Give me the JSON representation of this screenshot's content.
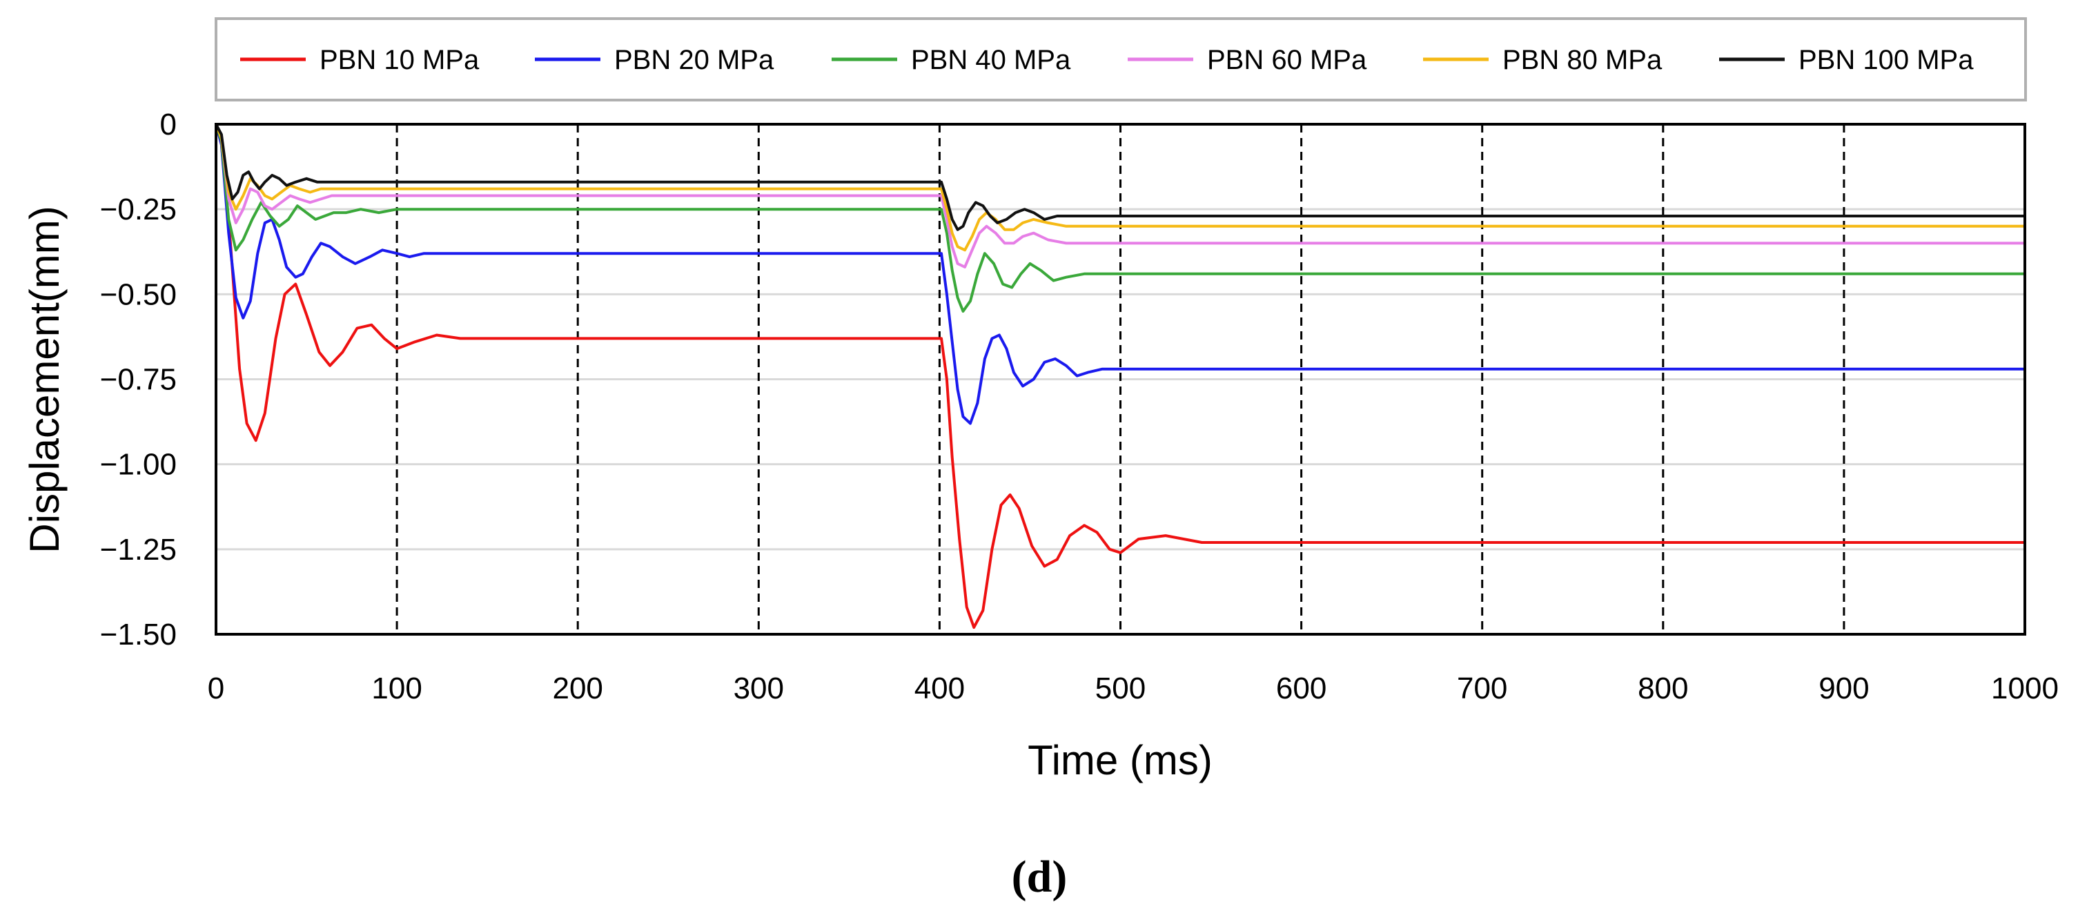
{
  "chart_data": {
    "type": "line",
    "title": "",
    "xlabel": "Time (ms)",
    "ylabel": "Displacement(mm)",
    "panel_label": "(d)",
    "xlim": [
      0,
      1000
    ],
    "ylim": [
      -1.5,
      0
    ],
    "x_ticks": [
      0,
      100,
      200,
      300,
      400,
      500,
      600,
      700,
      800,
      900,
      1000
    ],
    "x_tick_labels": [
      "0",
      "100",
      "200",
      "300",
      "400",
      "500",
      "600",
      "700",
      "800",
      "900",
      "1000"
    ],
    "y_ticks": [
      0,
      -0.25,
      -0.5,
      -0.75,
      -1.0,
      -1.25,
      -1.5
    ],
    "y_tick_labels": [
      "0",
      "-0.25",
      "-0.50",
      "-0.75",
      "-1.00",
      "-1.25",
      "-1.50"
    ],
    "horizontal_grid": true,
    "vertical_grid": "dashed",
    "legend_position": "top",
    "series": [
      {
        "name": "PBN 10 MPa",
        "color": "#ee1111",
        "x": [
          0,
          3,
          8,
          13,
          17,
          22,
          27,
          33,
          38,
          44,
          50,
          57,
          63,
          70,
          78,
          86,
          93,
          100,
          110,
          122,
          135,
          150,
          200,
          300,
          401,
          404,
          407,
          411,
          415,
          419,
          424,
          429,
          434,
          439,
          444,
          451,
          458,
          465,
          472,
          480,
          487,
          494,
          500,
          510,
          525,
          545,
          565,
          600,
          700,
          800,
          900,
          1000
        ],
        "y": [
          0,
          -0.06,
          -0.35,
          -0.72,
          -0.88,
          -0.93,
          -0.85,
          -0.63,
          -0.5,
          -0.47,
          -0.56,
          -0.67,
          -0.71,
          -0.67,
          -0.6,
          -0.59,
          -0.63,
          -0.66,
          -0.64,
          -0.62,
          -0.63,
          -0.63,
          -0.63,
          -0.63,
          -0.63,
          -0.75,
          -0.98,
          -1.22,
          -1.42,
          -1.48,
          -1.43,
          -1.25,
          -1.12,
          -1.09,
          -1.13,
          -1.24,
          -1.3,
          -1.28,
          -1.21,
          -1.18,
          -1.2,
          -1.25,
          -1.26,
          -1.22,
          -1.21,
          -1.23,
          -1.23,
          -1.23,
          -1.23,
          -1.23,
          -1.23,
          -1.23
        ]
      },
      {
        "name": "PBN 20 MPa",
        "color": "#1a1aee",
        "x": [
          0,
          3,
          7,
          11,
          15,
          19,
          23,
          27,
          31,
          35,
          39,
          44,
          48,
          53,
          58,
          63,
          70,
          77,
          85,
          92,
          100,
          107,
          115,
          122,
          130,
          200,
          300,
          401,
          404,
          407,
          410,
          413,
          417,
          421,
          425,
          429,
          433,
          437,
          441,
          446,
          452,
          458,
          464,
          470,
          476,
          482,
          490,
          500,
          550,
          600,
          700,
          800,
          900,
          1000
        ],
        "y": [
          0,
          -0.06,
          -0.32,
          -0.51,
          -0.57,
          -0.52,
          -0.38,
          -0.29,
          -0.28,
          -0.34,
          -0.42,
          -0.45,
          -0.44,
          -0.39,
          -0.35,
          -0.36,
          -0.39,
          -0.41,
          -0.39,
          -0.37,
          -0.38,
          -0.39,
          -0.38,
          -0.38,
          -0.38,
          -0.38,
          -0.38,
          -0.38,
          -0.5,
          -0.64,
          -0.78,
          -0.86,
          -0.88,
          -0.82,
          -0.69,
          -0.63,
          -0.62,
          -0.66,
          -0.73,
          -0.77,
          -0.75,
          -0.7,
          -0.69,
          -0.71,
          -0.74,
          -0.73,
          -0.72,
          -0.72,
          -0.72,
          -0.72,
          -0.72,
          -0.72,
          -0.72,
          -0.72
        ]
      },
      {
        "name": "PBN 40 MPa",
        "color": "#3aa83a",
        "x": [
          0,
          3,
          7,
          11,
          15,
          20,
          25,
          30,
          35,
          40,
          45,
          50,
          55,
          60,
          65,
          72,
          80,
          90,
          100,
          200,
          300,
          401,
          404,
          407,
          410,
          413,
          417,
          421,
          425,
          430,
          435,
          440,
          445,
          450,
          456,
          463,
          470,
          480,
          500,
          600,
          700,
          800,
          900,
          1000
        ],
        "y": [
          0,
          -0.05,
          -0.28,
          -0.37,
          -0.34,
          -0.28,
          -0.23,
          -0.27,
          -0.3,
          -0.28,
          -0.24,
          -0.26,
          -0.28,
          -0.27,
          -0.26,
          -0.26,
          -0.25,
          -0.26,
          -0.25,
          -0.25,
          -0.25,
          -0.25,
          -0.32,
          -0.43,
          -0.51,
          -0.55,
          -0.52,
          -0.44,
          -0.38,
          -0.41,
          -0.47,
          -0.48,
          -0.44,
          -0.41,
          -0.43,
          -0.46,
          -0.45,
          -0.44,
          -0.44,
          -0.44,
          -0.44,
          -0.44,
          -0.44,
          -0.44
        ]
      },
      {
        "name": "PBN 60 MPa",
        "color": "#e67ee6",
        "x": [
          0,
          3,
          7,
          11,
          15,
          19,
          23,
          27,
          31,
          36,
          41,
          46,
          52,
          58,
          64,
          72,
          80,
          90,
          100,
          200,
          300,
          401,
          404,
          407,
          410,
          414,
          418,
          422,
          426,
          431,
          436,
          441,
          446,
          452,
          460,
          470,
          485,
          500,
          600,
          700,
          800,
          900,
          1000
        ],
        "y": [
          0,
          -0.04,
          -0.22,
          -0.29,
          -0.25,
          -0.19,
          -0.2,
          -0.24,
          -0.25,
          -0.23,
          -0.21,
          -0.22,
          -0.23,
          -0.22,
          -0.21,
          -0.21,
          -0.21,
          -0.21,
          -0.21,
          -0.21,
          -0.21,
          -0.21,
          -0.28,
          -0.36,
          -0.41,
          -0.42,
          -0.37,
          -0.32,
          -0.3,
          -0.32,
          -0.35,
          -0.35,
          -0.33,
          -0.32,
          -0.34,
          -0.35,
          -0.35,
          -0.35,
          -0.35,
          -0.35,
          -0.35,
          -0.35,
          -0.35
        ]
      },
      {
        "name": "PBN 80 MPa",
        "color": "#f5b915",
        "x": [
          0,
          3,
          7,
          11,
          15,
          19,
          23,
          27,
          31,
          36,
          41,
          46,
          52,
          58,
          64,
          72,
          80,
          90,
          100,
          200,
          300,
          401,
          404,
          407,
          410,
          414,
          418,
          422,
          426,
          431,
          436,
          441,
          446,
          452,
          460,
          470,
          485,
          500,
          600,
          700,
          800,
          900,
          1000
        ],
        "y": [
          0,
          -0.04,
          -0.2,
          -0.25,
          -0.21,
          -0.16,
          -0.18,
          -0.21,
          -0.22,
          -0.2,
          -0.18,
          -0.19,
          -0.2,
          -0.19,
          -0.19,
          -0.19,
          -0.19,
          -0.19,
          -0.19,
          -0.19,
          -0.19,
          -0.19,
          -0.25,
          -0.32,
          -0.36,
          -0.37,
          -0.33,
          -0.28,
          -0.26,
          -0.28,
          -0.31,
          -0.31,
          -0.29,
          -0.28,
          -0.29,
          -0.3,
          -0.3,
          -0.3,
          -0.3,
          -0.3,
          -0.3,
          -0.3,
          -0.3
        ]
      },
      {
        "name": "PBN 100 MPa",
        "color": "#111111",
        "x": [
          0,
          3,
          6,
          9,
          12,
          15,
          18,
          21,
          24,
          27,
          31,
          35,
          39,
          44,
          50,
          56,
          63,
          70,
          80,
          90,
          100,
          200,
          300,
          401,
          404,
          407,
          410,
          413,
          416,
          420,
          424,
          428,
          432,
          437,
          442,
          447,
          452,
          458,
          465,
          475,
          490,
          500,
          600,
          700,
          800,
          900,
          1000
        ],
        "y": [
          0,
          -0.03,
          -0.15,
          -0.22,
          -0.2,
          -0.15,
          -0.14,
          -0.17,
          -0.19,
          -0.17,
          -0.15,
          -0.16,
          -0.18,
          -0.17,
          -0.16,
          -0.17,
          -0.17,
          -0.17,
          -0.17,
          -0.17,
          -0.17,
          -0.17,
          -0.17,
          -0.17,
          -0.22,
          -0.28,
          -0.31,
          -0.3,
          -0.26,
          -0.23,
          -0.24,
          -0.27,
          -0.29,
          -0.28,
          -0.26,
          -0.25,
          -0.26,
          -0.28,
          -0.27,
          -0.27,
          -0.27,
          -0.27,
          -0.27,
          -0.27,
          -0.27,
          -0.27,
          -0.27
        ]
      }
    ]
  }
}
